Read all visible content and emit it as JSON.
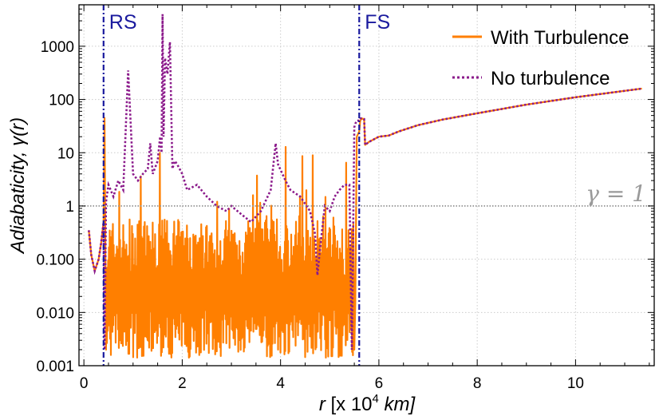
{
  "chart_data": {
    "type": "line",
    "title": "",
    "xlabel": "r [x 10^4 km]",
    "xlabel_parts": {
      "var": "r",
      "prefix": " [x 10",
      "exp": "4",
      "unit": " km]"
    },
    "ylabel": "Adiabaticity, γ(r)",
    "x_scale": "linear",
    "y_scale": "log",
    "xlim": [
      -0.1,
      11.6
    ],
    "ylim": [
      0.001,
      6000
    ],
    "grid": true,
    "x_ticks": [
      {
        "value": 0,
        "label": "0"
      },
      {
        "value": 2,
        "label": "2"
      },
      {
        "value": 4,
        "label": "4"
      },
      {
        "value": 6,
        "label": "6"
      },
      {
        "value": 8,
        "label": "8"
      },
      {
        "value": 10,
        "label": "10"
      }
    ],
    "y_ticks": [
      {
        "value": 0.001,
        "label": "0.001"
      },
      {
        "value": 0.01,
        "label": "0.010"
      },
      {
        "value": 0.1,
        "label": "0.100"
      },
      {
        "value": 1,
        "label": "1"
      },
      {
        "value": 10,
        "label": "10"
      },
      {
        "value": 100,
        "label": "100"
      },
      {
        "value": 1000,
        "label": "1000"
      }
    ],
    "legend_position": "top-right",
    "colors": {
      "turb": "#ff7f00",
      "noturb": "#8b1a8b",
      "shock": "#1a1a9e",
      "ref": "#9a9a9a"
    },
    "series": [
      {
        "name": "With Turbulence",
        "style": "solid",
        "x": [
          0.1,
          0.15,
          0.22,
          0.3,
          0.35,
          0.4,
          0.42,
          0.45,
          5.5,
          5.52,
          5.55,
          5.6,
          5.62,
          5.65,
          5.7,
          5.72,
          5.8,
          6.0,
          6.2,
          6.4,
          6.8,
          7.3,
          8.0,
          9.0,
          10.0,
          11.35
        ],
        "y": [
          0.35,
          0.12,
          0.06,
          0.1,
          0.2,
          0.5,
          45,
          0.002,
          0.002,
          0.015,
          20,
          25,
          40,
          44,
          43,
          14,
          16,
          20,
          21,
          25,
          33,
          42,
          55,
          80,
          110,
          160
        ]
      },
      {
        "name": "No turbulence",
        "style": "dotted",
        "x": [
          0.1,
          0.15,
          0.22,
          0.3,
          0.35,
          0.4,
          0.42,
          0.45,
          0.5,
          0.6,
          0.7,
          0.8,
          0.9,
          1.0,
          1.1,
          1.2,
          1.3,
          1.35,
          1.4,
          1.5,
          1.55,
          1.58,
          1.6,
          1.62,
          1.65,
          1.7,
          1.75,
          1.8,
          1.85,
          1.9,
          2.0,
          2.1,
          2.3,
          2.5,
          2.7,
          2.9,
          3.0,
          3.2,
          3.4,
          3.6,
          3.8,
          3.9,
          3.95,
          4.1,
          4.2,
          4.4,
          4.6,
          4.7,
          4.75,
          4.8,
          4.9,
          5.0,
          5.1,
          5.2,
          5.3,
          5.4,
          5.45,
          5.5,
          5.52,
          5.55,
          5.6,
          5.62,
          5.65,
          5.7,
          5.72,
          5.8,
          6.0,
          6.2,
          6.4,
          6.8,
          7.3,
          8.0,
          9.0,
          10.0,
          11.35
        ],
        "y": [
          0.35,
          0.12,
          0.06,
          0.1,
          0.2,
          0.5,
          0.002,
          1.2,
          2.5,
          1.5,
          3,
          2,
          350,
          4,
          3,
          4,
          5,
          15,
          4,
          7,
          20,
          10,
          4000,
          20,
          600,
          300,
          1200,
          5,
          7,
          6,
          4,
          2,
          2.5,
          1.5,
          1,
          0.8,
          1,
          0.7,
          0.5,
          0.8,
          2,
          15,
          6,
          3,
          2,
          1.5,
          0.8,
          0.3,
          0.05,
          0.15,
          1,
          0.8,
          1.5,
          2,
          2.5,
          2.5,
          0.002,
          30,
          35,
          40,
          40,
          44,
          44,
          43,
          14,
          16,
          20,
          21,
          25,
          33,
          42,
          55,
          80,
          110,
          160
        ]
      }
    ],
    "annotations": [
      {
        "text": "RS",
        "x": 0.4
      },
      {
        "text": "FS",
        "x": 5.6
      },
      {
        "text": "γ = 1",
        "y": 1
      }
    ]
  }
}
